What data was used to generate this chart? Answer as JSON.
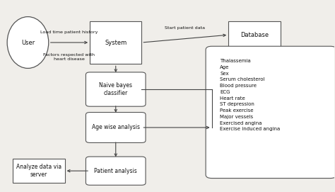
{
  "bg_color": "#f0eeea",
  "box_color": "#ffffff",
  "box_edge": "#555555",
  "arrow_color": "#444444",
  "text_color": "#111111",
  "user_label": "User",
  "system_label": "System",
  "database_label": "Database",
  "naive_label": "Naive bayes\nclassifier",
  "age_label": "Age wise analysis",
  "patient_label": "Patient analysis",
  "analyze_label": "Analyze data via\nserver",
  "features_label": "Thalassemia\nAge\nSex\nSerum cholesterol\nBlood pressure\nECG\nHeart rate\nST depression\nPeak exercise\nMajor vessels\nExercised angina\nExercise induced angina",
  "arrow_label1": "Load time patient history",
  "arrow_label2": "Factors respected with\nheart disease",
  "arrow_label3": "Start patient data"
}
